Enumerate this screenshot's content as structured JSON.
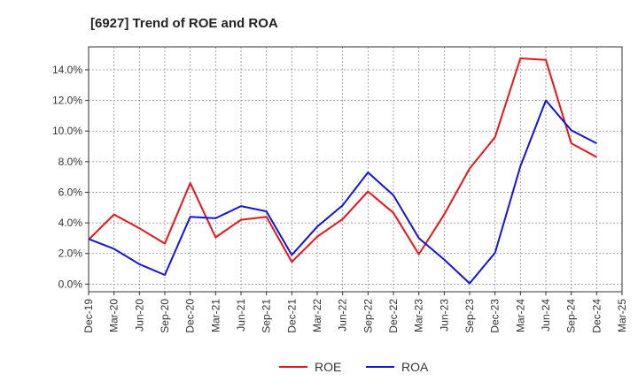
{
  "chart_data": {
    "type": "line",
    "title": "[6927]  Trend of ROE and ROA",
    "categories": [
      "Dec-19",
      "Mar-20",
      "Jun-20",
      "Sep-20",
      "Dec-20",
      "Mar-21",
      "Jun-21",
      "Sep-21",
      "Dec-21",
      "Mar-22",
      "Jun-22",
      "Sep-22",
      "Dec-22",
      "Mar-23",
      "Jun-23",
      "Sep-23",
      "Dec-23",
      "Mar-24",
      "Jun-24",
      "Sep-24",
      "Dec-24",
      "Mar-25"
    ],
    "ylim": [
      -0.5,
      15.5
    ],
    "yticks": [
      0,
      2,
      4,
      6,
      8,
      10,
      12,
      14
    ],
    "ytick_labels": [
      "0.0%",
      "2.0%",
      "4.0%",
      "6.0%",
      "8.0%",
      "10.0%",
      "12.0%",
      "14.0%"
    ],
    "grid": true,
    "legend_position": "bottom-center",
    "series": [
      {
        "name": "ROE",
        "color": "#e8141b",
        "values": [
          2.9,
          4.55,
          3.65,
          2.65,
          6.6,
          3.05,
          4.2,
          4.4,
          1.45,
          3.1,
          4.25,
          6.05,
          4.65,
          1.95,
          4.55,
          7.55,
          9.6,
          14.75,
          14.65,
          9.2,
          8.3,
          null
        ]
      },
      {
        "name": "ROA",
        "color": "#1414d8",
        "values": [
          2.95,
          2.3,
          1.3,
          0.6,
          4.4,
          4.3,
          5.1,
          4.75,
          1.9,
          3.75,
          5.15,
          7.3,
          5.8,
          3.0,
          1.6,
          0.05,
          2.05,
          7.7,
          12.0,
          10.05,
          9.2,
          null
        ]
      }
    ]
  }
}
